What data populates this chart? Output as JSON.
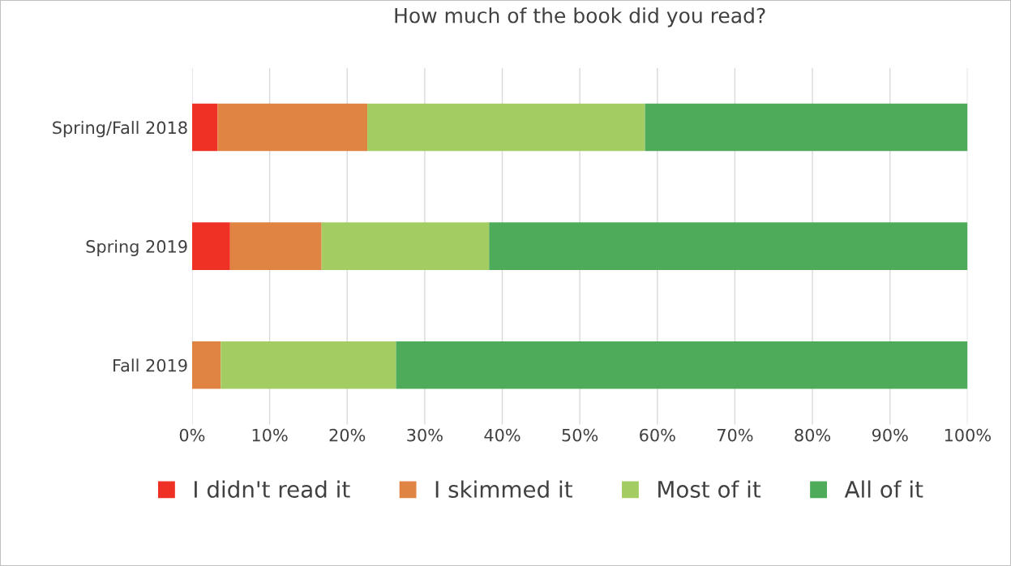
{
  "chart_data": {
    "type": "bar",
    "orientation": "horizontal",
    "stacked": true,
    "title": "How much of the book did you read?",
    "categories": [
      "Spring/Fall 2018",
      "Spring 2019",
      "Fall 2019"
    ],
    "series": [
      {
        "name": "I didn't read it",
        "color": "#ee3124",
        "values": [
          3.3,
          4.9,
          0
        ]
      },
      {
        "name": "I skimmed it",
        "color": "#e08444",
        "values": [
          19.3,
          11.8,
          3.7
        ]
      },
      {
        "name": "Most of it",
        "color": "#a3cd63",
        "values": [
          35.8,
          21.6,
          22.6
        ]
      },
      {
        "name": "All of it",
        "color": "#4dab5a",
        "values": [
          41.6,
          61.7,
          73.7
        ]
      }
    ],
    "xlim": [
      0,
      100
    ],
    "xticks": [
      {
        "value": 0,
        "label": "0%"
      },
      {
        "value": 10,
        "label": "10%"
      },
      {
        "value": 20,
        "label": "20%"
      },
      {
        "value": 30,
        "label": "30%"
      },
      {
        "value": 40,
        "label": "40%"
      },
      {
        "value": 50,
        "label": "50%"
      },
      {
        "value": 60,
        "label": "60%"
      },
      {
        "value": 70,
        "label": "70%"
      },
      {
        "value": 80,
        "label": "80%"
      },
      {
        "value": 90,
        "label": "90%"
      },
      {
        "value": 100,
        "label": "100%"
      }
    ],
    "grid": "x",
    "legend": "bottom"
  }
}
